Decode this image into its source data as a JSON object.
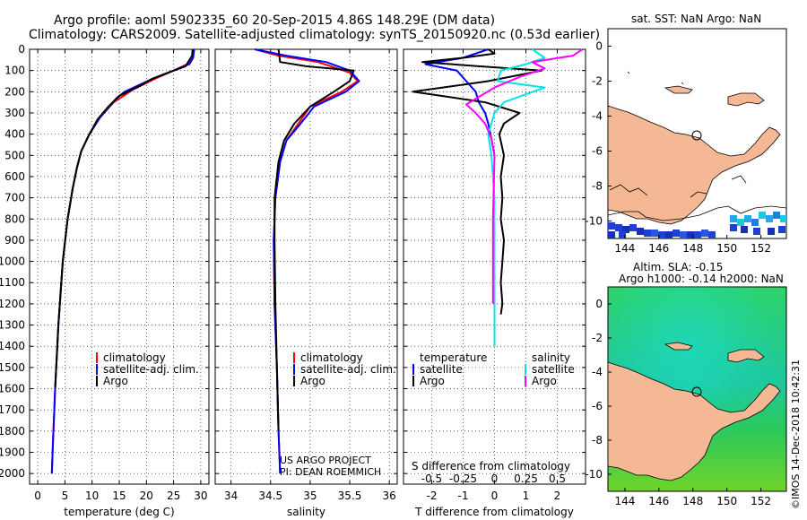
{
  "header": {
    "line1": "Argo profile: aoml 5902335_60 20-Sep-2015 4.86S 148.29E (DM data)",
    "line2": "Climatology: CARS2009. Satellite-adjusted climatology: synTS_20150920.nc (0.53d earlier)"
  },
  "footer": {
    "credit": "©IMOS 14-Dec-2018 10:42:31",
    "project_line1": "US ARGO PROJECT",
    "project_line2": "PI: DEAN ROEMMICH"
  },
  "colors": {
    "climatology": "#ff0000",
    "satellite": "#0000ff",
    "argo": "#000000",
    "sal_sat": "#00e5e5",
    "sal_argo": "#ff00ff",
    "land": "#f5b895",
    "ocean": "#28c846"
  },
  "chart_data": [
    {
      "id": "temperature",
      "type": "line",
      "xlabel": "temperature (deg C)",
      "ylabel": "",
      "xlim": [
        -1.5,
        31.5
      ],
      "ylim": [
        2050,
        0
      ],
      "xticks": [
        0,
        5,
        10,
        15,
        20,
        25,
        30
      ],
      "yticks": [
        0,
        100,
        200,
        300,
        400,
        500,
        600,
        700,
        800,
        900,
        1000,
        1100,
        1200,
        1300,
        1400,
        1500,
        1600,
        1700,
        1800,
        1900,
        2000
      ],
      "legend": [
        "climatology",
        "satellite-adj. clim.",
        "Argo"
      ],
      "series": [
        {
          "name": "climatology",
          "color": "#ff0000",
          "x": [
            28.6,
            28.4,
            27.5,
            25.0,
            21.5,
            17.5,
            14.0,
            11.5,
            9.5,
            8.0,
            7.2,
            6.4,
            5.5,
            4.6,
            3.8,
            3.2,
            2.8,
            2.6
          ],
          "y": [
            0,
            40,
            70,
            100,
            140,
            190,
            250,
            320,
            400,
            480,
            560,
            660,
            800,
            1000,
            1300,
            1600,
            1850,
            2000
          ]
        },
        {
          "name": "satellite-adj. clim.",
          "color": "#0000ff",
          "x": [
            28.8,
            28.6,
            27.9,
            25.0,
            21.0,
            16.0,
            14.5,
            11.5,
            9.5,
            8.0,
            7.2,
            6.4,
            5.5,
            4.6,
            3.8,
            3.2,
            2.8,
            2.6
          ],
          "y": [
            0,
            40,
            70,
            100,
            140,
            200,
            230,
            320,
            400,
            480,
            560,
            660,
            800,
            1000,
            1300,
            1600,
            1850,
            2000
          ]
        },
        {
          "name": "Argo",
          "color": "#000000",
          "x": [
            28.5,
            28.4,
            27.2,
            24.0,
            21.0,
            19.0,
            15.0,
            13.0,
            11.0,
            9.5,
            8.0,
            7.2,
            6.4,
            5.5,
            4.6,
            3.8,
            3.2
          ],
          "y": [
            0,
            30,
            80,
            110,
            140,
            170,
            220,
            270,
            330,
            400,
            480,
            560,
            660,
            800,
            1000,
            1300,
            1600
          ]
        }
      ]
    },
    {
      "id": "salinity",
      "type": "line",
      "xlabel": "salinity",
      "ylabel": "",
      "xlim": [
        33.8,
        36.1
      ],
      "ylim": [
        2050,
        0
      ],
      "xticks": [
        34,
        34.5,
        35,
        35.5,
        36
      ],
      "legend": [
        "climatology",
        "satellite-adj. clim.",
        "Argo"
      ],
      "series": [
        {
          "name": "climatology",
          "color": "#ff0000",
          "x": [
            34.3,
            34.6,
            35.1,
            35.5,
            35.6,
            35.4,
            35.0,
            34.85,
            34.7,
            34.62,
            34.56,
            34.54,
            34.55,
            34.58,
            34.6,
            34.62
          ],
          "y": [
            0,
            30,
            60,
            110,
            150,
            200,
            270,
            350,
            430,
            530,
            700,
            900,
            1200,
            1500,
            1800,
            2000
          ]
        },
        {
          "name": "satellite-adj. clim.",
          "color": "#0000ff",
          "x": [
            34.3,
            34.7,
            35.2,
            35.5,
            35.62,
            35.45,
            35.05,
            34.88,
            34.7,
            34.62,
            34.56,
            34.54,
            34.55,
            34.58,
            34.6,
            34.62
          ],
          "y": [
            0,
            30,
            60,
            100,
            150,
            200,
            270,
            350,
            430,
            530,
            700,
            900,
            1200,
            1500,
            1800,
            2000
          ]
        },
        {
          "name": "Argo",
          "color": "#000000",
          "x": [
            34.6,
            34.62,
            34.95,
            35.55,
            35.5,
            35.3,
            35.0,
            34.8,
            34.67,
            34.6,
            34.55,
            34.55,
            34.56,
            34.58,
            34.6
          ],
          "y": [
            0,
            60,
            80,
            100,
            150,
            200,
            270,
            350,
            430,
            530,
            700,
            900,
            1200,
            1500,
            1800
          ]
        }
      ]
    },
    {
      "id": "differences",
      "type": "line",
      "xlabel": "T difference from climatology",
      "top_xlabel": "S difference from climatology",
      "xlim": [
        -2.9,
        2.9
      ],
      "ylim": [
        2050,
        0
      ],
      "xticks": [
        -2,
        -1,
        0,
        1,
        2
      ],
      "top_ticks": [
        "-0.5",
        "-0.25",
        "0",
        "0.25",
        "0.5"
      ],
      "legend_left_title": "temperature",
      "legend_right_title": "salinity",
      "legend": [
        "satellite",
        "Argo",
        "satellite",
        "Argo"
      ],
      "series": [
        {
          "name": "T satellite",
          "color": "#0000ff",
          "x": [
            -0.2,
            -1.0,
            -2.2,
            -1.2,
            -0.9,
            -0.6,
            -0.5,
            -0.3,
            -0.2,
            -0.1,
            0
          ],
          "y": [
            0,
            40,
            70,
            100,
            150,
            200,
            250,
            300,
            350,
            420,
            500
          ]
        },
        {
          "name": "T Argo",
          "color": "#000000",
          "x": [
            -0.2,
            0.0,
            -1.0,
            -2.3,
            -0.5,
            1.5,
            -0.2,
            -2.6,
            -0.3,
            0.8,
            0.3,
            0.15,
            0.3,
            0.2,
            0.25,
            0.2,
            0.3,
            0.25,
            0.2,
            0.25,
            0.2
          ],
          "y": [
            0,
            20,
            40,
            60,
            80,
            100,
            150,
            200,
            250,
            300,
            350,
            400,
            500,
            600,
            700,
            800,
            900,
            1000,
            1100,
            1200,
            1250
          ]
        },
        {
          "name": "S satellite",
          "color": "#00e5e5",
          "x": [
            1.2,
            1.6,
            1.0,
            0.2,
            0.1,
            1.6,
            0.3,
            0.0,
            -0.2,
            -0.1,
            0.0,
            0.0,
            0.0
          ],
          "y": [
            0,
            40,
            70,
            100,
            150,
            180,
            250,
            300,
            400,
            500,
            700,
            1000,
            1400
          ]
        },
        {
          "name": "S Argo",
          "color": "#ff00ff",
          "x": [
            2.8,
            2.5,
            1.2,
            1.6,
            0.8,
            0.0,
            -0.9,
            -0.6,
            -0.3,
            -0.1,
            0.0,
            -0.05,
            -0.05
          ],
          "y": [
            0,
            30,
            60,
            90,
            130,
            180,
            260,
            300,
            350,
            420,
            500,
            800,
            1200
          ]
        }
      ]
    },
    {
      "id": "sst-map",
      "type": "heatmap",
      "title": "sat. SST: NaN Argo: NaN",
      "xticks": [
        144,
        146,
        148,
        150,
        152
      ],
      "yticks": [
        0,
        -2,
        -4,
        -6,
        -8,
        -10
      ],
      "xlim": [
        143,
        153.5
      ],
      "ylim": [
        -11,
        1
      ],
      "marker": {
        "lon": 148.29,
        "lat": -4.86
      }
    },
    {
      "id": "sla-map",
      "type": "heatmap",
      "title_line1": "Altim. SLA: -0.15",
      "title_line2": "Argo h1000: -0.14 h2000: NaN",
      "xticks": [
        144,
        146,
        148,
        150,
        152
      ],
      "yticks": [
        0,
        -2,
        -4,
        -6,
        -8,
        -10
      ],
      "xlim": [
        143,
        153.5
      ],
      "ylim": [
        -11,
        1
      ],
      "marker": {
        "lon": 148.29,
        "lat": -4.86
      }
    }
  ]
}
